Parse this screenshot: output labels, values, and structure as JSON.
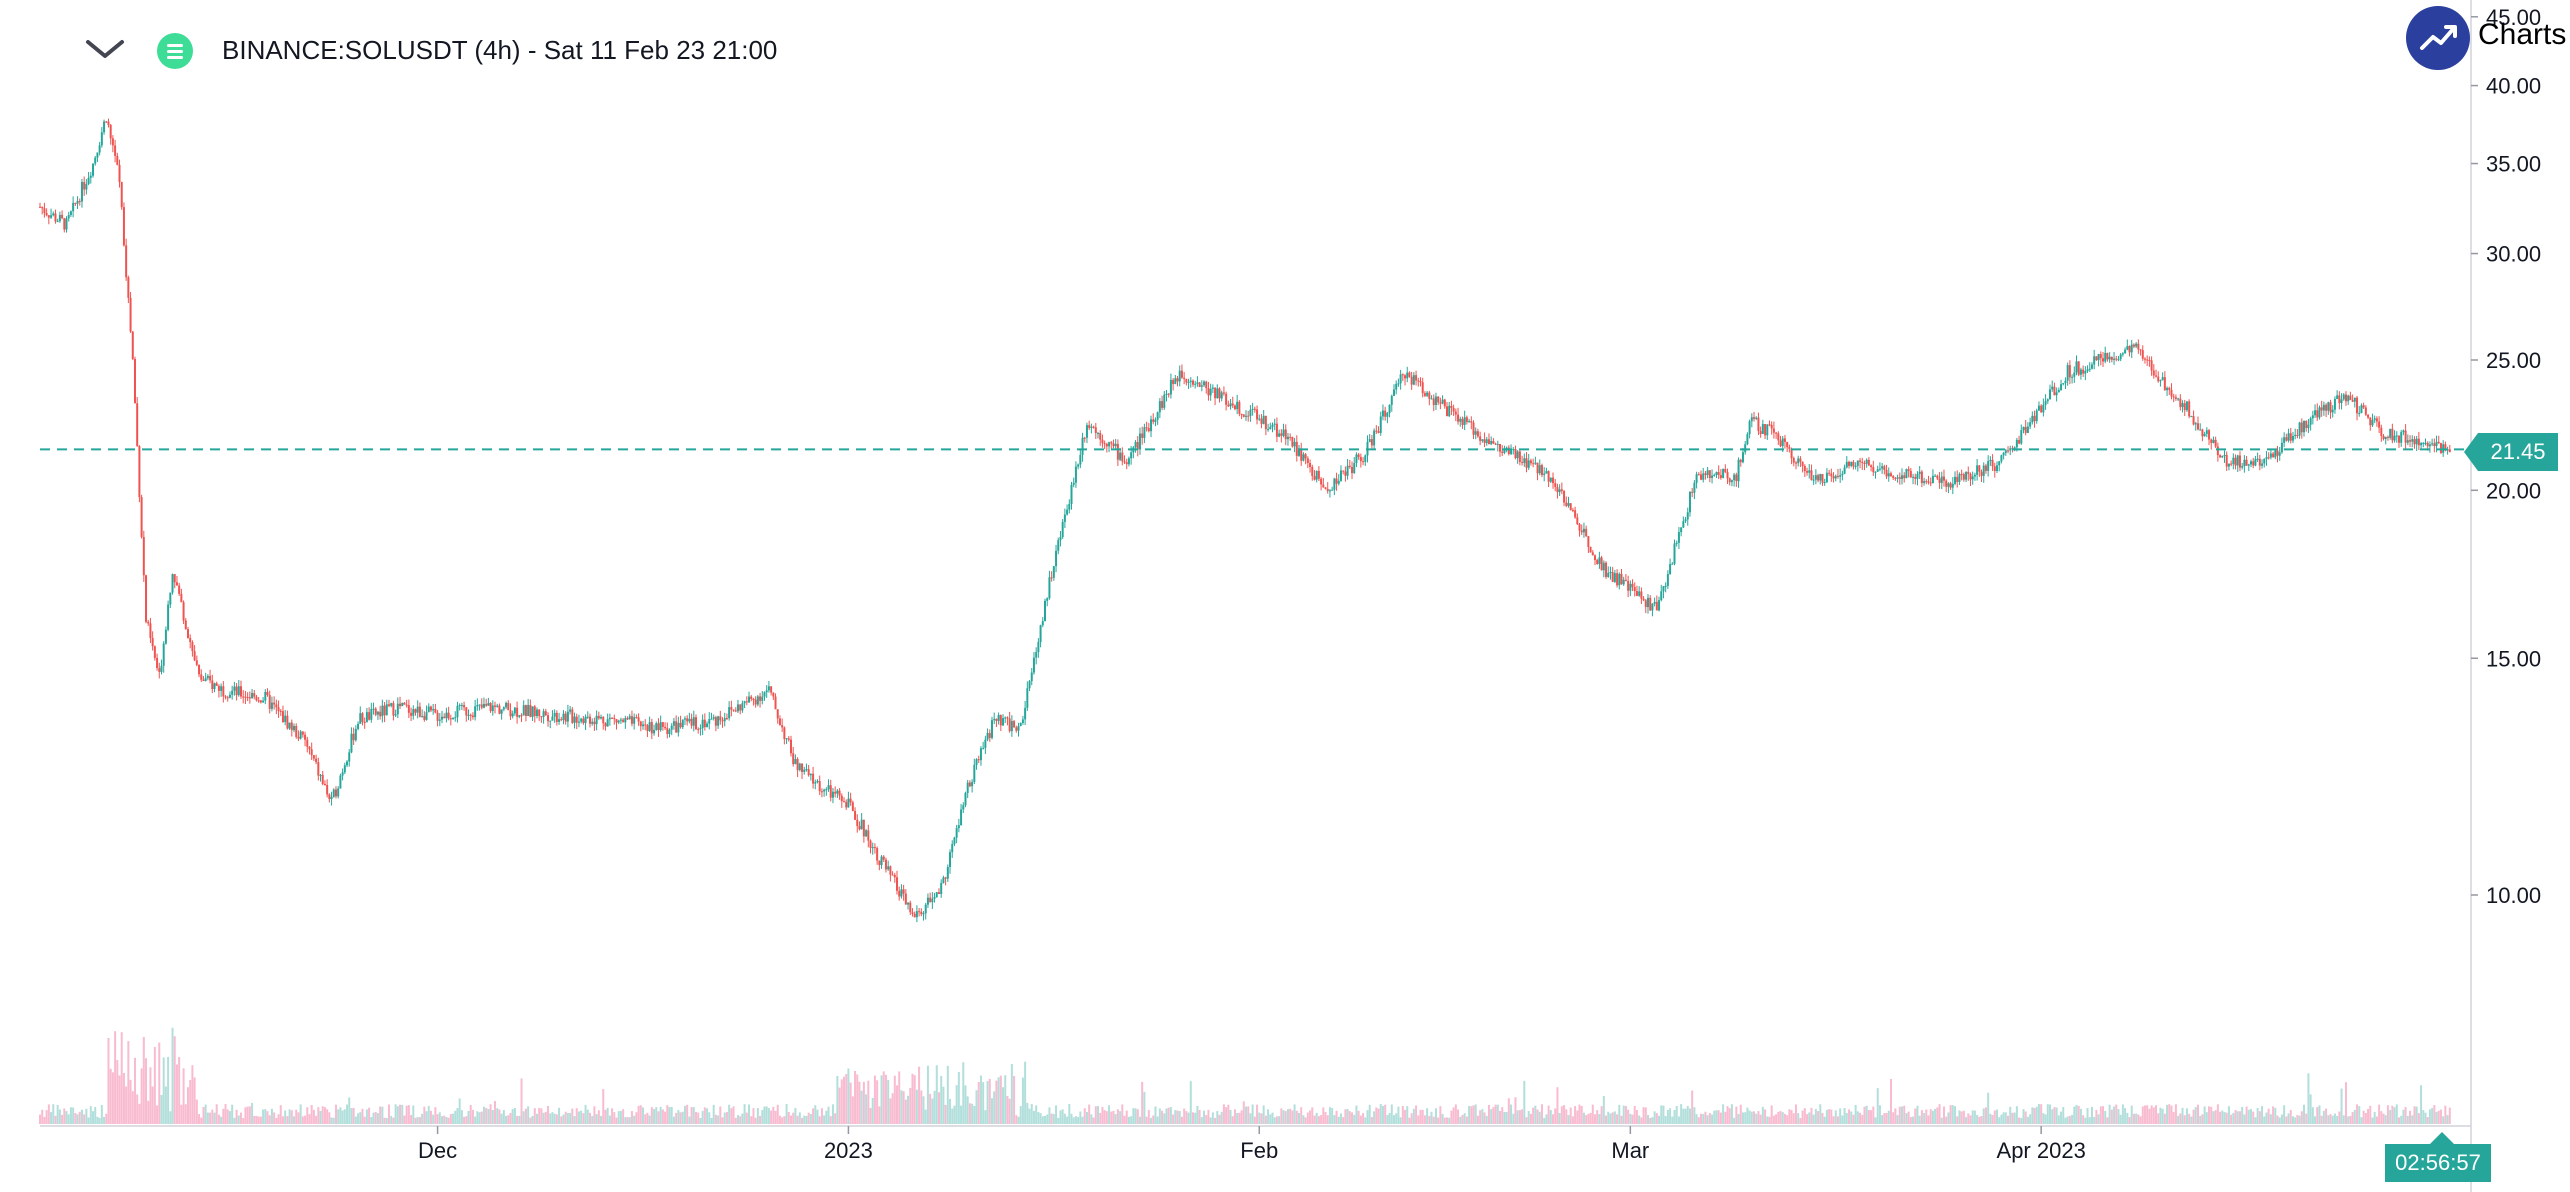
{
  "header": {
    "title": "BINANCE:SOLUSDT (4h) - Sat 11 Feb 23 21:00",
    "collapse_icon": "chevron-down-icon",
    "symbol_icon": "menu-lines-icon"
  },
  "brand": {
    "label": "Charts p",
    "icon": "trend-up-icon"
  },
  "colors": {
    "up": "#26a69a",
    "down": "#ef5350",
    "up_volume": "#b2dfdb",
    "down_volume": "#f8bbd0",
    "axis": "#9598a1"
  },
  "current_price": {
    "label": "21.45",
    "value": 21.45
  },
  "countdown": {
    "label": "02:56:57"
  },
  "chart_data": {
    "type": "candlestick",
    "interval": "4h",
    "symbol": "BINANCE:SOLUSDT",
    "y_scale": "log",
    "ylim": [
      6.5,
      45
    ],
    "y_ticks": [
      10,
      15,
      20,
      25,
      30,
      35,
      40,
      45
    ],
    "y_tick_labels": [
      "10.00",
      "15.00",
      "20.00",
      "25.00",
      "30.00",
      "35.00",
      "40.00",
      "45.00"
    ],
    "x_range": [
      "2022-11-01",
      "2023-05-02"
    ],
    "x_ticks": [
      {
        "label": "Dec",
        "date": "2022-12-01"
      },
      {
        "label": "2023",
        "date": "2023-01-01"
      },
      {
        "label": "Feb",
        "date": "2023-02-01"
      },
      {
        "label": "Mar",
        "date": "2023-03-01"
      },
      {
        "label": "Apr 2023",
        "date": "2023-04-01"
      }
    ],
    "series": [
      {
        "dates": [
          "2022-11-01",
          "2022-11-03",
          "2022-11-05",
          "2022-11-06",
          "2022-11-07",
          "2022-11-08",
          "2022-11-09",
          "2022-11-10",
          "2022-11-11",
          "2022-11-13",
          "2022-11-15",
          "2022-11-18",
          "2022-11-21",
          "2022-11-23",
          "2022-11-25",
          "2022-11-28",
          "2022-12-01",
          "2022-12-05",
          "2022-12-10",
          "2022-12-14",
          "2022-12-18",
          "2022-12-22",
          "2022-12-26",
          "2022-12-28",
          "2022-12-30",
          "2023-01-01",
          "2023-01-03",
          "2023-01-06",
          "2023-01-08",
          "2023-01-10",
          "2023-01-12",
          "2023-01-14",
          "2023-01-16",
          "2023-01-19",
          "2023-01-22",
          "2023-01-26",
          "2023-01-30",
          "2023-02-03",
          "2023-02-06",
          "2023-02-09",
          "2023-02-12",
          "2023-02-15",
          "2023-02-19",
          "2023-02-23",
          "2023-02-27",
          "2023-03-03",
          "2023-03-06",
          "2023-03-09",
          "2023-03-10",
          "2023-03-12",
          "2023-03-15",
          "2023-03-18",
          "2023-03-21",
          "2023-03-25",
          "2023-03-29",
          "2023-04-03",
          "2023-04-08",
          "2023-04-12",
          "2023-04-15",
          "2023-04-18",
          "2023-04-21",
          "2023-04-24",
          "2023-04-27",
          "2023-04-30",
          "2023-05-01"
        ],
        "close": [
          32.5,
          31.5,
          35.0,
          38.0,
          34.0,
          25.0,
          16.0,
          14.5,
          17.5,
          14.5,
          14.2,
          14.0,
          13.0,
          11.7,
          13.5,
          13.8,
          13.6,
          13.8,
          13.6,
          13.5,
          13.3,
          13.5,
          14.2,
          12.5,
          12.0,
          11.7,
          10.8,
          9.6,
          10.1,
          12.0,
          13.5,
          13.3,
          16.8,
          22.5,
          21.0,
          24.5,
          23.2,
          22.0,
          20.0,
          21.3,
          24.5,
          23.0,
          21.5,
          20.5,
          17.5,
          16.3,
          20.5,
          20.5,
          22.5,
          22.0,
          20.3,
          21.0,
          20.6,
          20.3,
          21.0,
          24.5,
          25.5,
          23.0,
          21.0,
          21.0,
          22.5,
          23.5,
          22.0,
          21.8,
          21.45
        ]
      }
    ],
    "volume": {
      "relative_levels": "low, with spikes near 2022-11-08 and 2023-01-03 to 2023-01-12"
    }
  }
}
